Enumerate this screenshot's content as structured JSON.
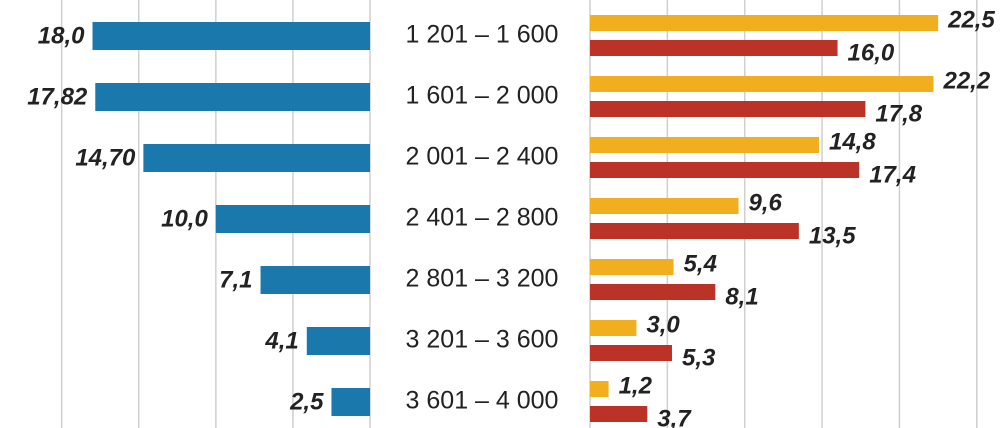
{
  "chart_data": [
    {
      "type": "bar",
      "categories": [
        "1 201 – 1 600",
        "1 601 – 2 000",
        "2 001 – 2 400",
        "2 401 – 2 800",
        "2 801 – 3 200",
        "3 201 – 3 600",
        "3 601 – 4 000"
      ],
      "values": [
        18.0,
        17.82,
        14.7,
        10.0,
        7.1,
        4.1,
        2.5
      ],
      "value_labels": [
        "18,0",
        "17,82",
        "14,70",
        "10,0",
        "7,1",
        "4,1",
        "2,5"
      ],
      "color": "#1a78ad",
      "xlim": [
        24,
        0
      ],
      "xticks": [
        0,
        5,
        10,
        15,
        20
      ],
      "grid": true
    },
    {
      "type": "bar",
      "series": [
        {
          "color": "#f1ae1e",
          "values": [
            22.5,
            22.2,
            14.8,
            9.6,
            5.4,
            3.0,
            1.2
          ],
          "value_labels": [
            "22,5",
            "22,2",
            "14,8",
            "9,6",
            "5,4",
            "3,0",
            "1,2"
          ]
        },
        {
          "color": "#bb3327",
          "values": [
            16.0,
            17.8,
            17.4,
            13.5,
            8.1,
            5.3,
            3.7
          ],
          "value_labels": [
            "16,0",
            "17,8",
            "17,4",
            "13,5",
            "8,1",
            "5,3",
            "3,7"
          ]
        }
      ],
      "xlim": [
        0,
        26.5
      ],
      "xticks": [
        0,
        5,
        10,
        15,
        20,
        25
      ],
      "grid": true
    }
  ]
}
